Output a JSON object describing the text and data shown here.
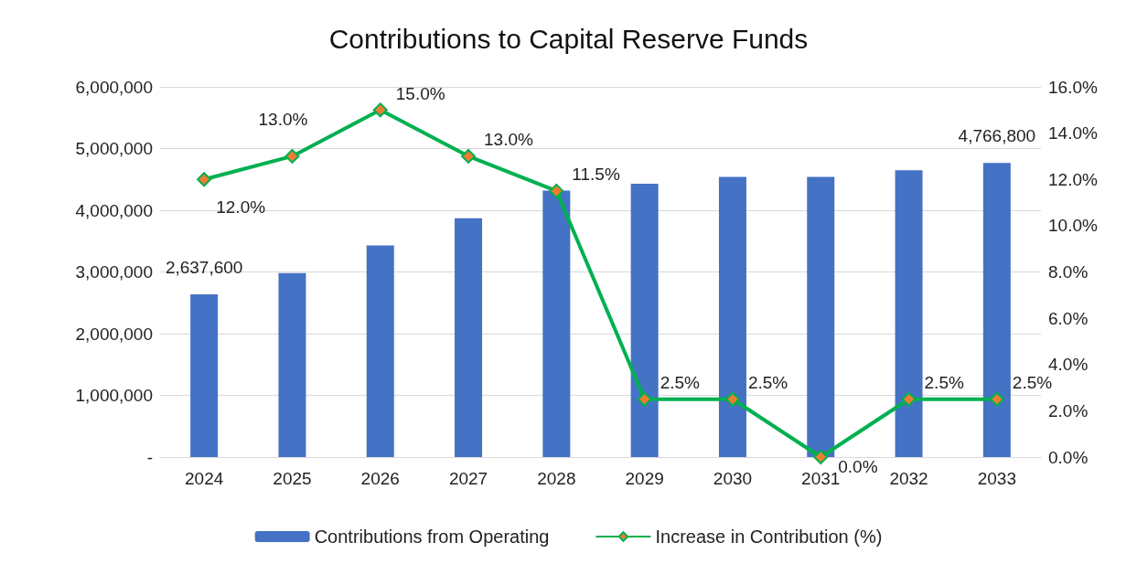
{
  "chart_data": {
    "type": "bar",
    "title": "Contributions to Capital Reserve Funds",
    "categories": [
      "2024",
      "2025",
      "2026",
      "2027",
      "2028",
      "2029",
      "2030",
      "2031",
      "2032",
      "2033"
    ],
    "series": [
      {
        "name": "Contributions from Operating",
        "color": "#4472c4",
        "values": [
          2637600,
          2980000,
          3430000,
          3870000,
          4320000,
          4430000,
          4540000,
          4540000,
          4650000,
          4766800
        ],
        "value_labels": [
          "2,637,600",
          null,
          null,
          null,
          null,
          null,
          null,
          null,
          null,
          "4,766,800"
        ]
      },
      {
        "name": "Increase in Contribution (%)",
        "type": "line",
        "axis": "y2",
        "color": "#00b050",
        "colors": [
          "#ed7d31",
          "#ed7d31",
          "#ed7d31",
          "#ed7d31",
          "#ed7d31",
          "#ed7d31",
          "#ed7d31",
          "#ed7d31",
          "#ed7d31",
          "#ed7d31"
        ],
        "marker": "diamond",
        "values": [
          12.0,
          13.0,
          15.0,
          13.0,
          11.5,
          2.5,
          2.5,
          0.0,
          2.5,
          2.5
        ],
        "value_labels": [
          "12.0%",
          "13.0%",
          "15.0%",
          "13.0%",
          "11.5%",
          "2.5%",
          "2.5%",
          "0.0%",
          "2.5%",
          "2.5%"
        ]
      }
    ],
    "ylim": [
      0,
      6000000
    ],
    "yticks": [
      {
        "value": 0,
        "label": "-"
      },
      {
        "value": 1000000,
        "label": "1,000,000"
      },
      {
        "value": 2000000,
        "label": "2,000,000"
      },
      {
        "value": 3000000,
        "label": "3,000,000"
      },
      {
        "value": 4000000,
        "label": "4,000,000"
      },
      {
        "value": 5000000,
        "label": "5,000,000"
      },
      {
        "value": 6000000,
        "label": "6,000,000"
      }
    ],
    "y2lim": [
      0,
      16
    ],
    "y2ticks": [
      {
        "value": 0,
        "label": "0.0%"
      },
      {
        "value": 2,
        "label": "2.0%"
      },
      {
        "value": 4,
        "label": "4.0%"
      },
      {
        "value": 6,
        "label": "6.0%"
      },
      {
        "value": 8,
        "label": "8.0%"
      },
      {
        "value": 10,
        "label": "10.0%"
      },
      {
        "value": 12,
        "label": "12.0%"
      },
      {
        "value": 14,
        "label": "14.0%"
      },
      {
        "value": 16,
        "label": "16.0%"
      }
    ],
    "grid": "y",
    "legend": "bottom"
  }
}
